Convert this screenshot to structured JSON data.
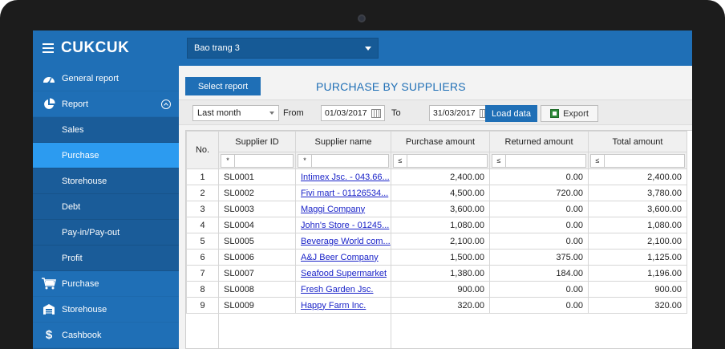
{
  "app": {
    "logo": "CUKCUK"
  },
  "header": {
    "branch": "Bao trang 3"
  },
  "sidebar": {
    "items": [
      {
        "label": "General report"
      },
      {
        "label": "Report"
      },
      {
        "label": "Sales"
      },
      {
        "label": "Purchase"
      },
      {
        "label": "Storehouse"
      },
      {
        "label": "Debt"
      },
      {
        "label": "Pay-in/Pay-out"
      },
      {
        "label": "Profit"
      },
      {
        "label": "Purchase"
      },
      {
        "label": "Storehouse"
      },
      {
        "label": "Cashbook"
      }
    ]
  },
  "report": {
    "select_label": "Select report",
    "title": "PURCHASE BY SUPPLIERS"
  },
  "toolbar": {
    "period": "Last month",
    "from_label": "From",
    "from_date": "01/03/2017",
    "to_label": "To",
    "to_date": "31/03/2017",
    "load_label": "Load data",
    "export_label": "Export"
  },
  "grid": {
    "columns": [
      "No.",
      "Supplier ID",
      "Supplier name",
      "Purchase amount",
      "Returned amount",
      "Total amount"
    ],
    "filter_ops": [
      "*",
      "*",
      "≤",
      "≤",
      "≤"
    ],
    "rows": [
      [
        "1",
        "SL0001",
        "Intimex Jsc. - 043.66...",
        "2,400.00",
        "0.00",
        "2,400.00"
      ],
      [
        "2",
        "SL0002",
        "Fivi mart - 01126534...",
        "4,500.00",
        "720.00",
        "3,780.00"
      ],
      [
        "3",
        "SL0003",
        "Maggi Company",
        "3,600.00",
        "0.00",
        "3,600.00"
      ],
      [
        "4",
        "SL0004",
        "John's Store - 01245...",
        "1,080.00",
        "0.00",
        "1,080.00"
      ],
      [
        "5",
        "SL0005",
        "Beverage World com...",
        "2,100.00",
        "0.00",
        "2,100.00"
      ],
      [
        "6",
        "SL0006",
        "A&J Beer Company",
        "1,500.00",
        "375.00",
        "1,125.00"
      ],
      [
        "7",
        "SL0007",
        "Seafood Supermarket",
        "1,380.00",
        "184.00",
        "1,196.00"
      ],
      [
        "8",
        "SL0008",
        "Fresh Garden Jsc.",
        "900.00",
        "0.00",
        "900.00"
      ],
      [
        "9",
        "SL0009",
        "Happy Farm Inc.",
        "320.00",
        "0.00",
        "320.00"
      ]
    ]
  },
  "colors": {
    "primary": "#1f6fb6",
    "sidebar_dark": "#1a5c99",
    "active": "#2c9bf0",
    "link": "#1a23c8"
  }
}
